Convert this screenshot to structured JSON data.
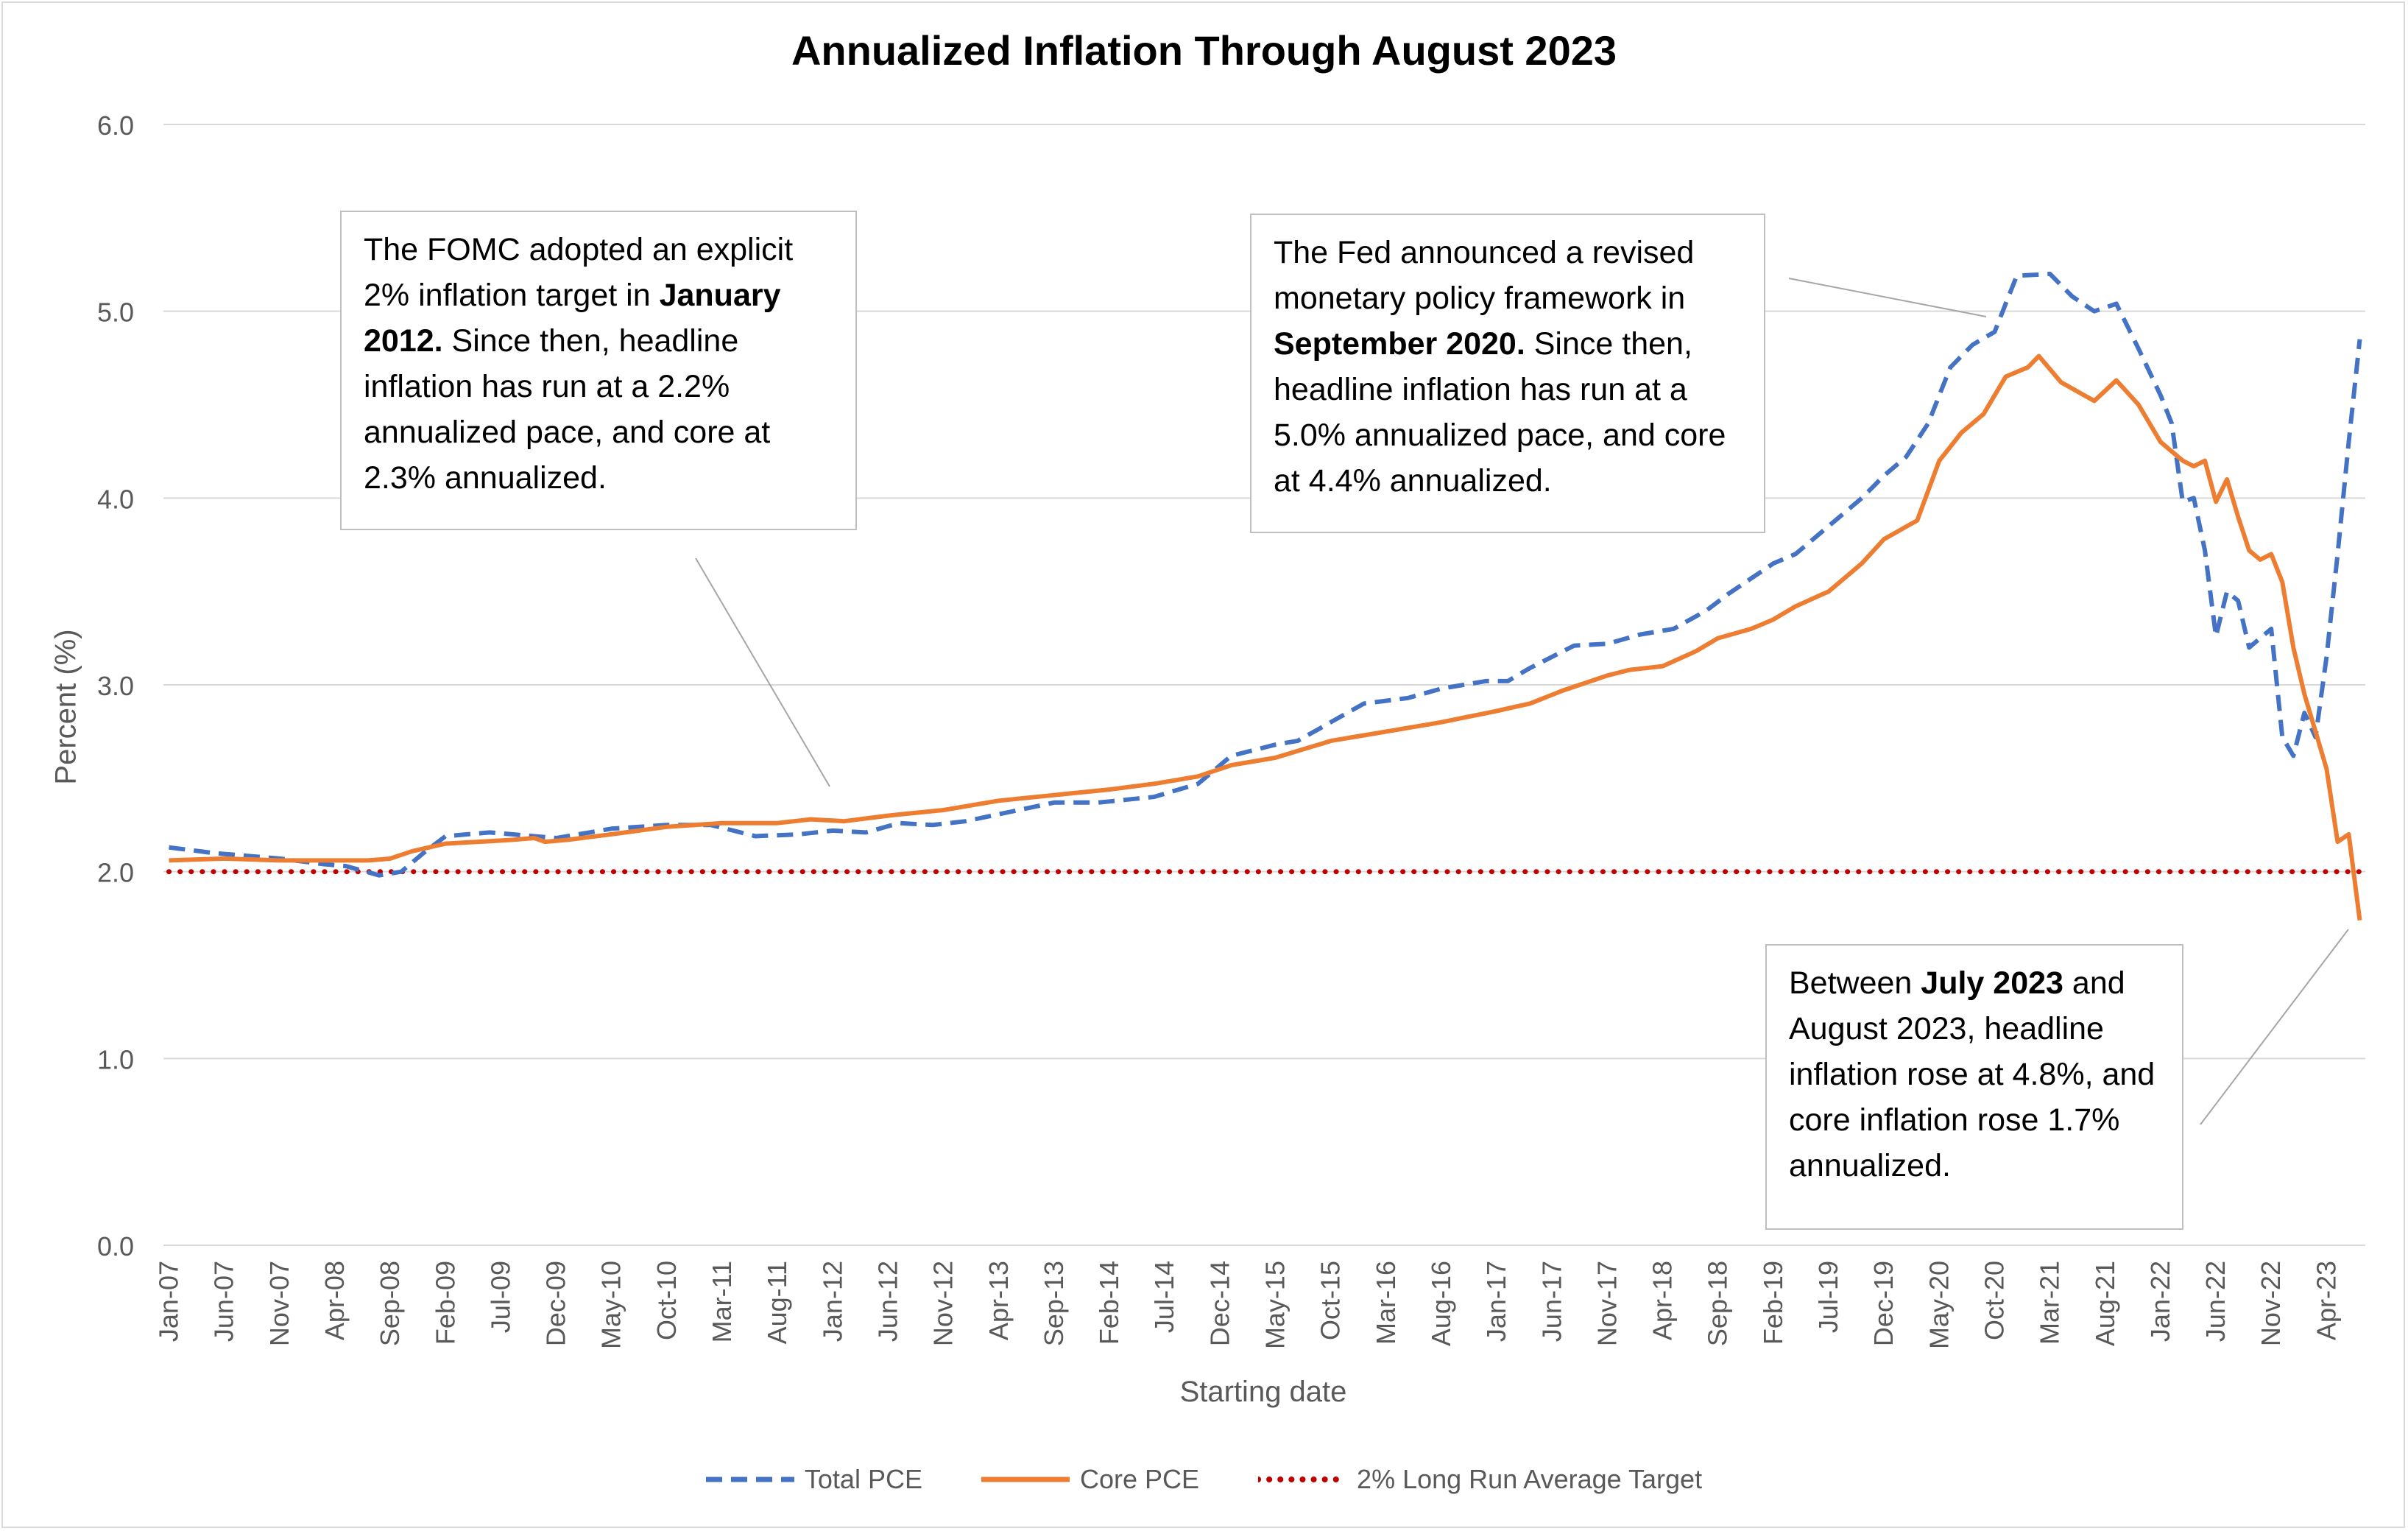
{
  "chart_data": {
    "type": "line",
    "title": "Annualized Inflation Through August 2023",
    "xlabel": "Starting date",
    "ylabel": "Percent (%)",
    "ylim": [
      0,
      6
    ],
    "yticks": [
      "0.0",
      "1.0",
      "2.0",
      "3.0",
      "4.0",
      "5.0",
      "6.0"
    ],
    "grid": true,
    "legend_position": "bottom",
    "xticks": [
      {
        "index": 0,
        "label": "Jan-07"
      },
      {
        "index": 5,
        "label": "Jun-07"
      },
      {
        "index": 10,
        "label": "Nov-07"
      },
      {
        "index": 15,
        "label": "Apr-08"
      },
      {
        "index": 20,
        "label": "Sep-08"
      },
      {
        "index": 25,
        "label": "Feb-09"
      },
      {
        "index": 30,
        "label": "Jul-09"
      },
      {
        "index": 35,
        "label": "Dec-09"
      },
      {
        "index": 40,
        "label": "May-10"
      },
      {
        "index": 45,
        "label": "Oct-10"
      },
      {
        "index": 50,
        "label": "Mar-11"
      },
      {
        "index": 55,
        "label": "Aug-11"
      },
      {
        "index": 60,
        "label": "Jan-12"
      },
      {
        "index": 65,
        "label": "Jun-12"
      },
      {
        "index": 70,
        "label": "Nov-12"
      },
      {
        "index": 75,
        "label": "Apr-13"
      },
      {
        "index": 80,
        "label": "Sep-13"
      },
      {
        "index": 85,
        "label": "Feb-14"
      },
      {
        "index": 90,
        "label": "Jul-14"
      },
      {
        "index": 95,
        "label": "Dec-14"
      },
      {
        "index": 100,
        "label": "May-15"
      },
      {
        "index": 105,
        "label": "Oct-15"
      },
      {
        "index": 110,
        "label": "Mar-16"
      },
      {
        "index": 115,
        "label": "Aug-16"
      },
      {
        "index": 120,
        "label": "Jan-17"
      },
      {
        "index": 125,
        "label": "Jun-17"
      },
      {
        "index": 130,
        "label": "Nov-17"
      },
      {
        "index": 135,
        "label": "Apr-18"
      },
      {
        "index": 140,
        "label": "Sep-18"
      },
      {
        "index": 145,
        "label": "Feb-19"
      },
      {
        "index": 150,
        "label": "Jul-19"
      },
      {
        "index": 155,
        "label": "Dec-19"
      },
      {
        "index": 160,
        "label": "May-20"
      },
      {
        "index": 165,
        "label": "Oct-20"
      },
      {
        "index": 170,
        "label": "Mar-21"
      },
      {
        "index": 175,
        "label": "Aug-21"
      },
      {
        "index": 180,
        "label": "Jan-22"
      },
      {
        "index": 185,
        "label": "Jun-22"
      },
      {
        "index": 190,
        "label": "Nov-22"
      },
      {
        "index": 195,
        "label": "Apr-23"
      }
    ],
    "x_first": "Jan-07",
    "x_last": "Jul-23",
    "n_points": 199,
    "series": [
      {
        "name": "Total PCE",
        "color": "#4472c4",
        "style": "dashed",
        "knots": [
          [
            0,
            2.13
          ],
          [
            4,
            2.1
          ],
          [
            10,
            2.07
          ],
          [
            14,
            2.04
          ],
          [
            16,
            2.03
          ],
          [
            19,
            1.98
          ],
          [
            21,
            2.0
          ],
          [
            23,
            2.1
          ],
          [
            25,
            2.19
          ],
          [
            29,
            2.21
          ],
          [
            33,
            2.19
          ],
          [
            35,
            2.18
          ],
          [
            40,
            2.23
          ],
          [
            45,
            2.25
          ],
          [
            49,
            2.25
          ],
          [
            53,
            2.19
          ],
          [
            57,
            2.2
          ],
          [
            60,
            2.22
          ],
          [
            63,
            2.21
          ],
          [
            66,
            2.26
          ],
          [
            69,
            2.25
          ],
          [
            72,
            2.27
          ],
          [
            76,
            2.32
          ],
          [
            80,
            2.37
          ],
          [
            84,
            2.37
          ],
          [
            89,
            2.4
          ],
          [
            93,
            2.47
          ],
          [
            96,
            2.62
          ],
          [
            100,
            2.68
          ],
          [
            102,
            2.7
          ],
          [
            105,
            2.8
          ],
          [
            108,
            2.9
          ],
          [
            112,
            2.93
          ],
          [
            115,
            2.98
          ],
          [
            119,
            3.02
          ],
          [
            121,
            3.02
          ],
          [
            123,
            3.09
          ],
          [
            127,
            3.21
          ],
          [
            130,
            3.22
          ],
          [
            133,
            3.27
          ],
          [
            136,
            3.3
          ],
          [
            139,
            3.4
          ],
          [
            141,
            3.49
          ],
          [
            145,
            3.65
          ],
          [
            147,
            3.7
          ],
          [
            150,
            3.85
          ],
          [
            153,
            4.0
          ],
          [
            155,
            4.12
          ],
          [
            157,
            4.22
          ],
          [
            159,
            4.4
          ],
          [
            161,
            4.7
          ],
          [
            163,
            4.82
          ],
          [
            165,
            4.89
          ],
          [
            167,
            5.19
          ],
          [
            170,
            5.2
          ],
          [
            172,
            5.08
          ],
          [
            174,
            5.0
          ],
          [
            176,
            5.04
          ],
          [
            178,
            4.8
          ],
          [
            180,
            4.55
          ],
          [
            181,
            4.4
          ],
          [
            182,
            3.98
          ],
          [
            183,
            4.0
          ],
          [
            184,
            3.72
          ],
          [
            185,
            3.26
          ],
          [
            186,
            3.5
          ],
          [
            187,
            3.45
          ],
          [
            188,
            3.2
          ],
          [
            190,
            3.3
          ],
          [
            191,
            2.72
          ],
          [
            192,
            2.62
          ],
          [
            193,
            2.85
          ],
          [
            194,
            2.72
          ],
          [
            195,
            3.15
          ],
          [
            196,
            3.7
          ],
          [
            197,
            4.3
          ],
          [
            198,
            4.85
          ]
        ]
      },
      {
        "name": "Core PCE",
        "color": "#ed7d31",
        "style": "solid",
        "knots": [
          [
            0,
            2.06
          ],
          [
            5,
            2.07
          ],
          [
            10,
            2.06
          ],
          [
            15,
            2.06
          ],
          [
            18,
            2.06
          ],
          [
            20,
            2.07
          ],
          [
            22,
            2.11
          ],
          [
            25,
            2.15
          ],
          [
            28,
            2.16
          ],
          [
            31,
            2.17
          ],
          [
            33,
            2.18
          ],
          [
            34,
            2.16
          ],
          [
            36,
            2.17
          ],
          [
            40,
            2.2
          ],
          [
            45,
            2.24
          ],
          [
            50,
            2.26
          ],
          [
            55,
            2.26
          ],
          [
            58,
            2.28
          ],
          [
            61,
            2.27
          ],
          [
            65,
            2.3
          ],
          [
            70,
            2.33
          ],
          [
            75,
            2.38
          ],
          [
            80,
            2.41
          ],
          [
            85,
            2.44
          ],
          [
            89,
            2.47
          ],
          [
            93,
            2.51
          ],
          [
            96,
            2.57
          ],
          [
            100,
            2.61
          ],
          [
            105,
            2.7
          ],
          [
            110,
            2.75
          ],
          [
            115,
            2.8
          ],
          [
            120,
            2.86
          ],
          [
            123,
            2.9
          ],
          [
            126,
            2.97
          ],
          [
            130,
            3.05
          ],
          [
            132,
            3.08
          ],
          [
            135,
            3.1
          ],
          [
            138,
            3.18
          ],
          [
            140,
            3.25
          ],
          [
            143,
            3.3
          ],
          [
            145,
            3.35
          ],
          [
            147,
            3.42
          ],
          [
            150,
            3.5
          ],
          [
            153,
            3.65
          ],
          [
            155,
            3.78
          ],
          [
            158,
            3.88
          ],
          [
            160,
            4.2
          ],
          [
            162,
            4.35
          ],
          [
            164,
            4.45
          ],
          [
            166,
            4.65
          ],
          [
            168,
            4.7
          ],
          [
            169,
            4.76
          ],
          [
            171,
            4.62
          ],
          [
            174,
            4.52
          ],
          [
            176,
            4.63
          ],
          [
            178,
            4.5
          ],
          [
            180,
            4.3
          ],
          [
            182,
            4.2
          ],
          [
            183,
            4.17
          ],
          [
            184,
            4.2
          ],
          [
            185,
            3.98
          ],
          [
            186,
            4.1
          ],
          [
            187,
            3.9
          ],
          [
            188,
            3.72
          ],
          [
            189,
            3.67
          ],
          [
            190,
            3.7
          ],
          [
            191,
            3.55
          ],
          [
            192,
            3.2
          ],
          [
            193,
            2.95
          ],
          [
            195,
            2.55
          ],
          [
            196,
            2.16
          ],
          [
            197,
            2.2
          ],
          [
            198,
            1.74
          ]
        ]
      },
      {
        "name": "2% Long Run Average Target",
        "color": "#c00000",
        "style": "dotted",
        "knots": [
          [
            0,
            2.0
          ],
          [
            198,
            2.0
          ]
        ]
      }
    ]
  },
  "annotations": {
    "a1": {
      "pre": "The FOMC adopted an explicit 2% inflation target in ",
      "bold": "January 2012.",
      "post": " Since then, headline inflation has run at a 2.2% annualized pace, and core at 2.3% annualized."
    },
    "a2": {
      "pre": "The Fed announced a revised monetary policy framework in ",
      "bold": "September 2020.",
      "post": " Since then, headline inflation has run at a 5.0% annualized pace, and core at 4.4% annualized."
    },
    "a3": {
      "pre": "Between ",
      "bold": "July 2023",
      "post": " and August 2023, headline inflation rose at 4.8%, and core inflation rose 1.7% annualized."
    }
  }
}
